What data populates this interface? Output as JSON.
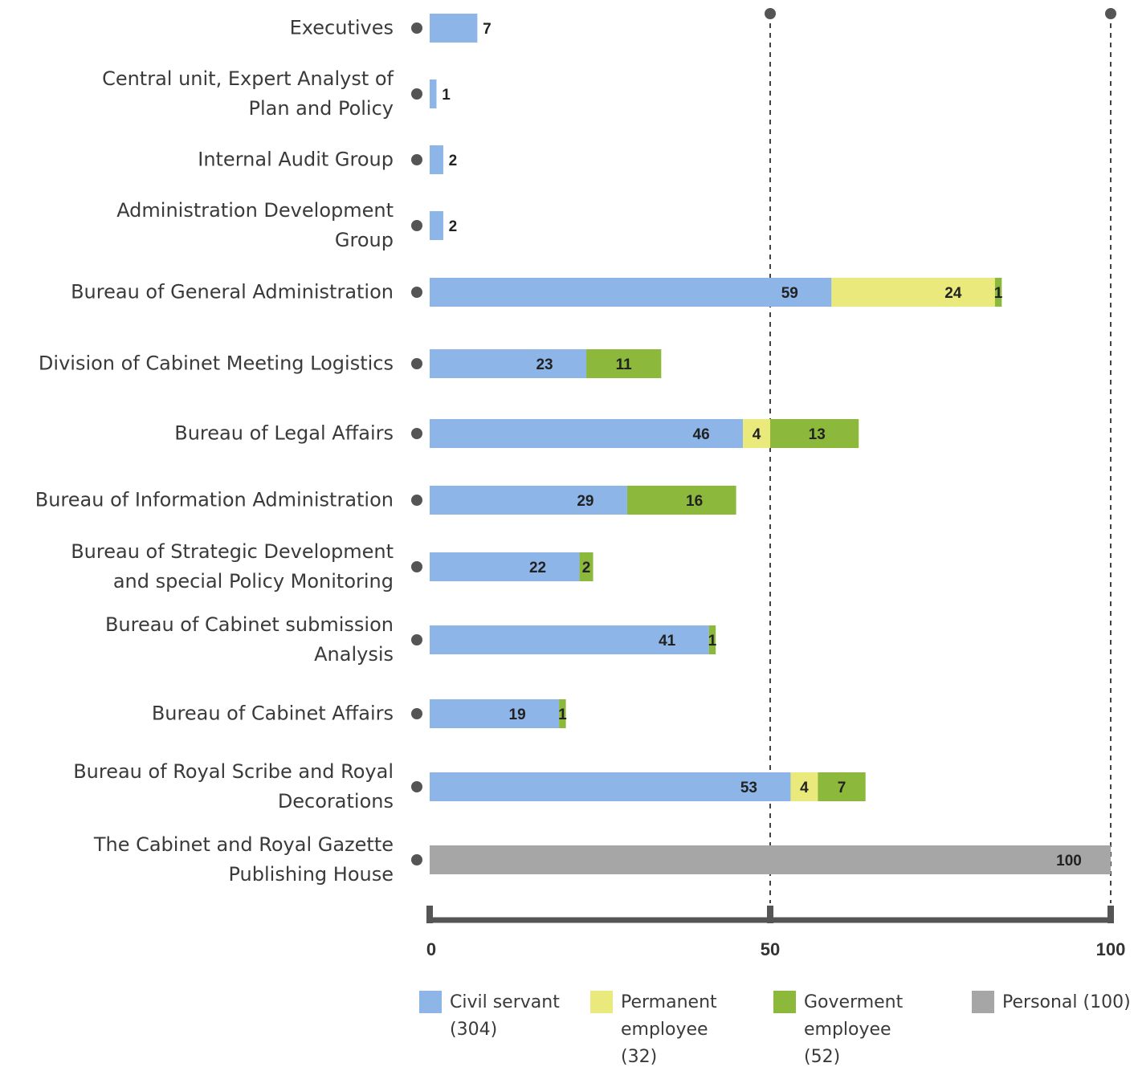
{
  "chart_data": {
    "type": "stacked_barh",
    "categories": [
      "Executives",
      "Central unit, Expert Analyst of Plan and Policy",
      "Internal Audit Group",
      "Administration Development Group",
      "Bureau of General Administration",
      "Division of Cabinet Meeting Logistics",
      "Bureau of Legal Affairs",
      "Bureau of Information Administration",
      "Bureau of Strategic Development and special Policy Monitoring",
      "Bureau of Cabinet submission Analysis",
      "Bureau of Cabinet Affairs",
      "Bureau of Royal Scribe and Royal Decorations",
      "The Cabinet and Royal Gazette Publishing House"
    ],
    "series": [
      {
        "name": "Civil servant (304)",
        "color": "#8db5e8",
        "values": [
          7,
          1,
          2,
          2,
          59,
          23,
          46,
          29,
          22,
          41,
          19,
          53,
          null
        ]
      },
      {
        "name": "Permanent employee (32)",
        "color": "#e9e97c",
        "values": [
          null,
          null,
          null,
          null,
          24,
          null,
          4,
          null,
          null,
          null,
          null,
          4,
          null
        ]
      },
      {
        "name": "Goverment employee (52)",
        "color": "#8cb83c",
        "values": [
          null,
          null,
          null,
          null,
          1,
          11,
          13,
          16,
          2,
          1,
          1,
          7,
          null
        ]
      },
      {
        "name": "Personal (100)",
        "color": "#a6a6a6",
        "values": [
          null,
          null,
          null,
          null,
          null,
          null,
          null,
          null,
          null,
          null,
          null,
          null,
          100
        ]
      }
    ],
    "xlim": [
      0,
      100
    ],
    "xticks": [
      0,
      50,
      100
    ]
  }
}
